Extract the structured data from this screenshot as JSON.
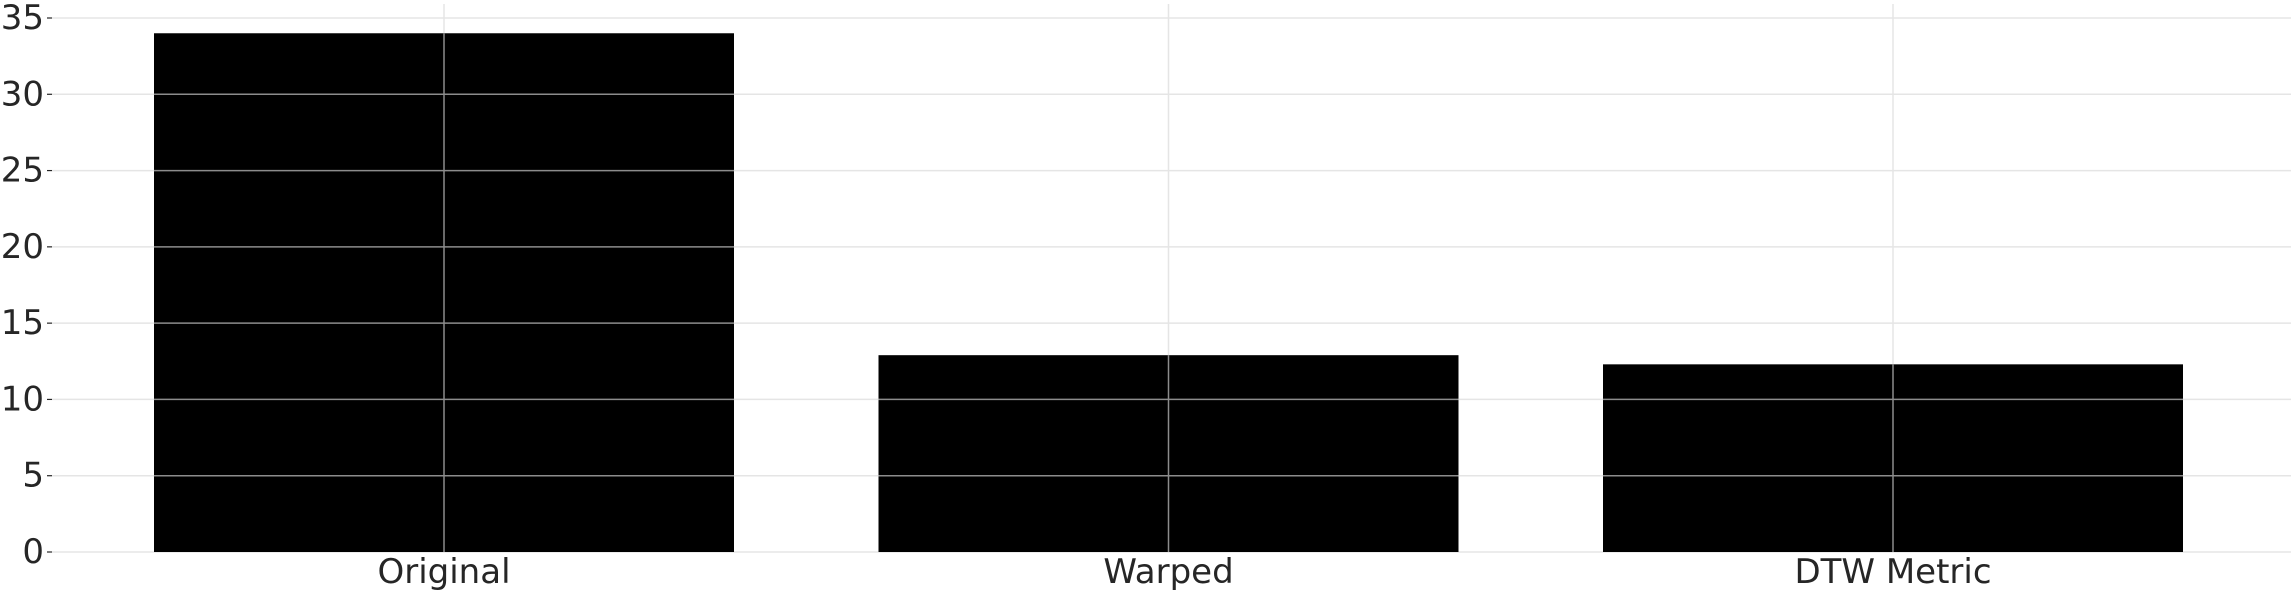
{
  "chart_data": {
    "type": "bar",
    "categories": [
      "Original",
      "Warped",
      "DTW Metric"
    ],
    "values": [
      34,
      12.9,
      12.3
    ],
    "title": "",
    "xlabel": "",
    "ylabel": "",
    "ylim": [
      0,
      35
    ],
    "yticks": [
      "0",
      "5",
      "10",
      "15",
      "20",
      "25",
      "30",
      "35"
    ],
    "grid": true,
    "bar_color": "#000000",
    "grid_color": "#e5e5e5"
  }
}
